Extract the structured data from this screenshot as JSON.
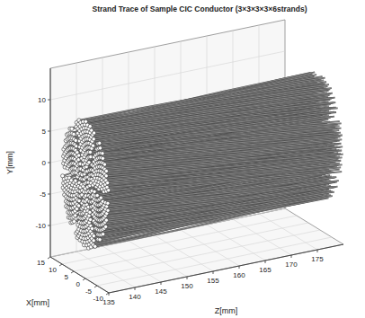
{
  "chart_data": {
    "type": "strand_trace_3d",
    "title": "Strand Trace of Sample CIC Conductor (3×3×3×3×6strands)",
    "x_label": "X[mm]",
    "y_label": "Y[mm]",
    "z_label": "Z[mm]",
    "xlim": [
      -10,
      15
    ],
    "ylim": [
      -15,
      15
    ],
    "zlim": [
      135,
      180
    ],
    "xticks": [
      -10,
      -5,
      0,
      5,
      10,
      15
    ],
    "yticks": [
      -10,
      -5,
      0,
      5,
      10
    ],
    "zticks": [
      135,
      140,
      145,
      150,
      155,
      160,
      165,
      170,
      175
    ],
    "grid": true,
    "color": "#4a4a4a",
    "marker": "circle",
    "conductor": {
      "radius": 10,
      "z_start": 135,
      "z_end": 180,
      "petals": 6,
      "strands": 486
    }
  }
}
